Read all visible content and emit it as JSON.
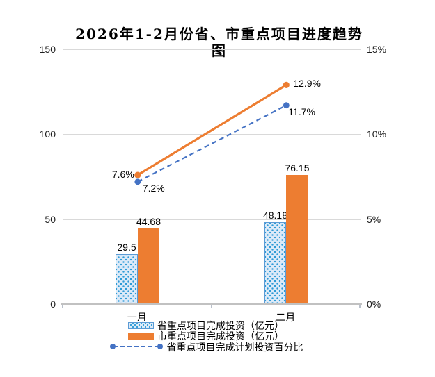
{
  "title": {
    "text": "2026年1-2月份省、市重点项目进度趋势图",
    "lines": [
      "2026年1-2月份省、市重点项目进度趋势",
      "图"
    ]
  },
  "colors": {
    "orange": "#ED7D31",
    "blue": "#4472C4",
    "pattern_dot": "#2E9BD6",
    "pattern_bg": "#DCEAF8",
    "pattern_border": "#5B9BD5",
    "gridline": "#D9D9D9",
    "axis_line": "#C1C1C1"
  },
  "chart_data": {
    "type": "bar",
    "subtype": "combo-bar-line-dual-axis",
    "title": "2026年1-2月份省、市重点项目进度趋势图",
    "categories": [
      "一月",
      "二月"
    ],
    "y_left": {
      "tick_labels": [
        "0",
        "50",
        "100",
        "150"
      ],
      "ticks": [
        0,
        50,
        100,
        150
      ],
      "min": 0,
      "max": 150
    },
    "y_right": {
      "tick_labels": [
        "0%",
        "5%",
        "10%",
        "15%"
      ],
      "ticks": [
        0,
        5,
        10,
        15
      ],
      "min": 0,
      "max": 15
    },
    "grid": "horizontal",
    "legend_position": "bottom",
    "series": [
      {
        "kind": "bar",
        "name": "省重点项目完成投资（亿元）",
        "axis": "left",
        "values": [
          29.5,
          48.18
        ],
        "labels": [
          "29.5",
          "48.18"
        ],
        "swatch": "pattern"
      },
      {
        "kind": "bar",
        "name": "市重点项目完成投资（亿元）",
        "axis": "left",
        "values": [
          44.68,
          76.15
        ],
        "labels": [
          "44.68",
          "76.15"
        ],
        "swatch": "solid"
      },
      {
        "kind": "line",
        "name": "",
        "axis": "right",
        "values": [
          7.6,
          12.9
        ],
        "labels": [
          "7.6%",
          "12.9%"
        ],
        "style": "solid-orange"
      },
      {
        "kind": "line",
        "name": "省重点项目完成计划投资百分比",
        "axis": "right",
        "values": [
          7.2,
          11.7
        ],
        "labels": [
          "7.2%",
          "11.7%"
        ],
        "style": "dashed-blue"
      }
    ],
    "legend": [
      {
        "label": "省重点项目完成投资（亿元）",
        "swatch": "pattern-bar"
      },
      {
        "label": "市重点项目完成投资（亿元）",
        "swatch": "solid-bar"
      },
      {
        "label": "省重点项目完成计划投资百分比",
        "swatch": "dashed-line"
      }
    ]
  }
}
